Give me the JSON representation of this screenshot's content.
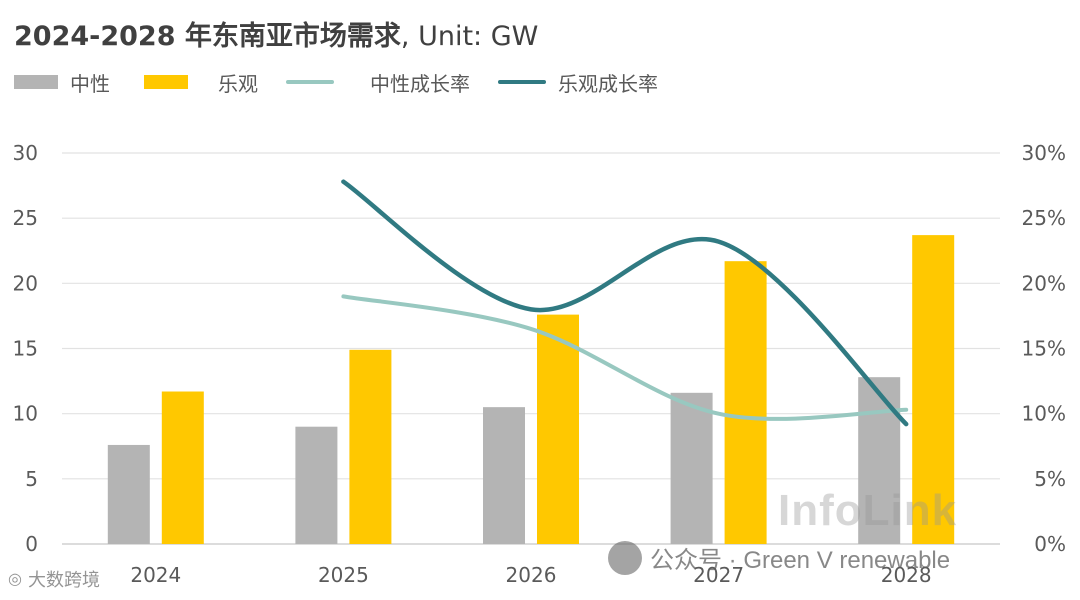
{
  "title": {
    "bold": "2024-2028 年东南亚市场需求",
    "rest": ", Unit: GW"
  },
  "legend": [
    {
      "label": "中性",
      "kind": "bar",
      "color": "#b4b4b4"
    },
    {
      "label": "乐观",
      "kind": "bar",
      "color": "#ffc800"
    },
    {
      "label": "中性成长率",
      "kind": "line",
      "color": "#98c8c0"
    },
    {
      "label": "乐观成长率",
      "kind": "line",
      "color": "#307a82"
    }
  ],
  "watermarks": {
    "infolink": "InfoLink",
    "wechat": "公众号 · Green V renewable",
    "bottom_left": "大数跨境"
  },
  "chart_data": {
    "type": "bar",
    "categories": [
      "2024",
      "2025",
      "2026",
      "2027",
      "2028"
    ],
    "series": [
      {
        "name": "中性",
        "type": "bar",
        "axis": "left",
        "color": "#b4b4b4",
        "values": [
          7.6,
          9.0,
          10.5,
          11.6,
          12.8
        ]
      },
      {
        "name": "乐观",
        "type": "bar",
        "axis": "left",
        "color": "#ffc800",
        "values": [
          11.7,
          14.9,
          17.6,
          21.7,
          23.7
        ]
      },
      {
        "name": "中性成长率",
        "type": "line",
        "axis": "right",
        "color": "#98c8c0",
        "values": [
          null,
          0.19,
          0.165,
          0.1,
          0.103
        ]
      },
      {
        "name": "乐观成长率",
        "type": "line",
        "axis": "right",
        "color": "#307a82",
        "values": [
          null,
          0.278,
          0.18,
          0.232,
          0.092
        ]
      }
    ],
    "ylim_left": [
      0,
      30
    ],
    "yticks_left": [
      "0",
      "5",
      "10",
      "15",
      "20",
      "25",
      "30"
    ],
    "ylim_right": [
      0,
      0.3
    ],
    "yticks_right": [
      "0%",
      "5%",
      "10%",
      "15%",
      "20%",
      "25%",
      "30%"
    ],
    "grid": true,
    "legend_position": "top-left"
  }
}
